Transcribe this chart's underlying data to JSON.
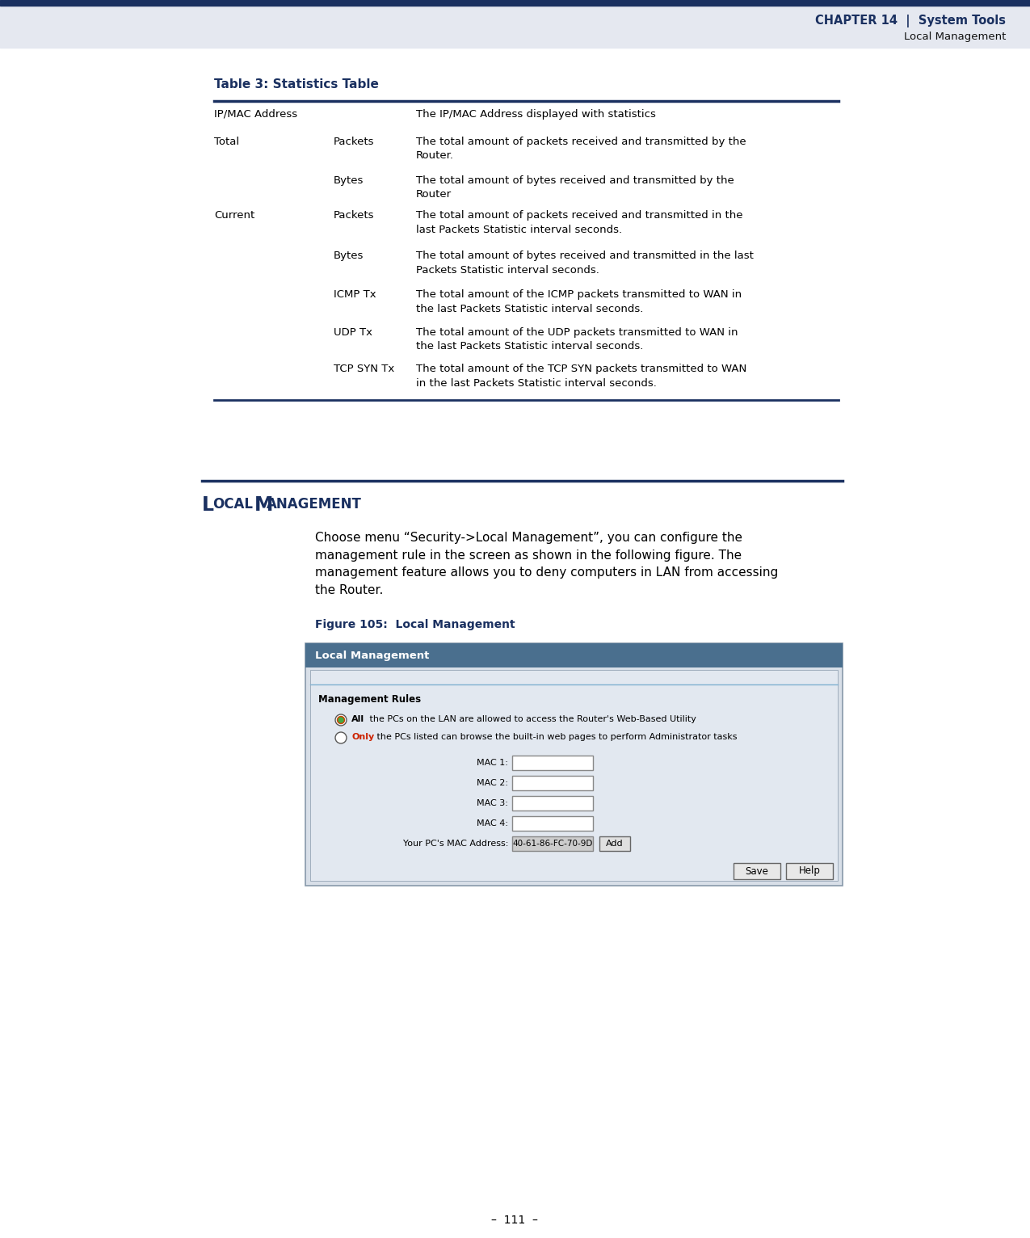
{
  "page_bg": "#ffffff",
  "header_dark_bg": "#1a3060",
  "header_stripe_bg": "#e5e8f0",
  "chapter_text": "CHAPTER 14  |  System Tools",
  "chapter_sub": "Local Management",
  "header_text_color": "#1a3060",
  "table_title": "Table 3: Statistics Table",
  "table_title_color": "#1a3060",
  "table_line_color": "#1a3060",
  "table_rows": [
    {
      "col1": "IP/MAC Address",
      "col2": "",
      "col3": "The IP/MAC Address displayed with statistics"
    },
    {
      "col1": "Total",
      "col2": "Packets",
      "col3": "The total amount of packets received and transmitted by the\nRouter."
    },
    {
      "col1": "",
      "col2": "Bytes",
      "col3": "The total amount of bytes received and transmitted by the\nRouter"
    },
    {
      "col1": "Current",
      "col2": "Packets",
      "col3": "The total amount of packets received and transmitted in the\nlast Packets Statistic interval seconds."
    },
    {
      "col1": "",
      "col2": "Bytes",
      "col3": "The total amount of bytes received and transmitted in the last\nPackets Statistic interval seconds."
    },
    {
      "col1": "",
      "col2": "ICMP Tx",
      "col3": "The total amount of the ICMP packets transmitted to WAN in\nthe last Packets Statistic interval seconds."
    },
    {
      "col1": "",
      "col2": "UDP Tx",
      "col3": "The total amount of the UDP packets transmitted to WAN in\nthe last Packets Statistic interval seconds."
    },
    {
      "col1": "",
      "col2": "TCP SYN Tx",
      "col3": "The total amount of the TCP SYN packets transmitted to WAN\nin the last Packets Statistic interval seconds."
    }
  ],
  "section_title_local": "Local",
  "section_title_mgmt": "Management",
  "section_title_color": "#1a3060",
  "section_body": "Choose menu “Security->Local Management”, you can configure the\nmanagement rule in the screen as shown in the following figure. The\nmanagement feature allows you to deny computers in LAN from accessing\nthe Router.",
  "figure_title": "Figure 105:  Local Management",
  "figure_title_color": "#1a3060",
  "panel_header_bg": "#4a6f8e",
  "panel_header_text": "Local Management",
  "panel_outer_bg": "#d8dfe8",
  "panel_inner_bg": "#e2e8f0",
  "panel_inner_line_color": "#80b0d0",
  "mgmt_rules_label": "Management Rules",
  "radio1_text_bold": "All",
  "radio1_text_rest": " the PCs on the LAN are allowed to access the Router's Web-Based Utility",
  "radio2_text_bold": "Only",
  "radio2_text_rest": " the PCs listed can browse the built-in web pages to perform Administrator tasks",
  "mac_labels": [
    "MAC 1:",
    "MAC 2:",
    "MAC 3:",
    "MAC 4:"
  ],
  "your_mac_label": "Your PC's MAC Address:",
  "your_mac_value": "40-61-86-FC-70-9D",
  "btn_add": "Add",
  "btn_save": "Save",
  "btn_help": "Help",
  "page_number": "111",
  "text_color": "#000000",
  "divider_color": "#1a3060"
}
